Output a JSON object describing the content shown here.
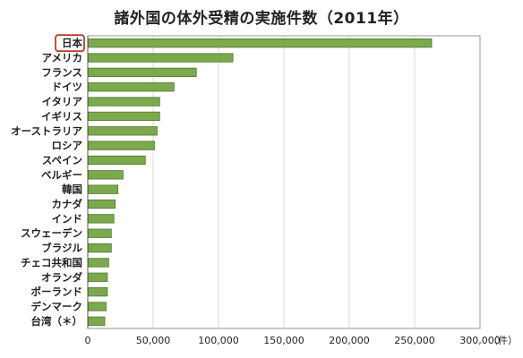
{
  "chart_data": {
    "type": "bar",
    "orientation": "horizontal",
    "title": "諸外国の体外受精の実施件数（2011年）",
    "xlabel": "",
    "ylabel": "",
    "x_unit": "（件）",
    "categories": [
      "日本",
      "アメリカ",
      "フランス",
      "ドイツ",
      "イタリア",
      "イギリス",
      "オーストラリア",
      "ロシア",
      "スペイン",
      "ベルギー",
      "韓国",
      "カナダ",
      "インド",
      "スウェーデン",
      "ブラジル",
      "チェコ共和国",
      "オランダ",
      "ポーランド",
      "デンマーク",
      "台湾（＊）"
    ],
    "values": [
      263000,
      111000,
      83000,
      66000,
      55000,
      55000,
      53000,
      51000,
      44000,
      27000,
      23000,
      21000,
      20000,
      18000,
      18000,
      16000,
      15000,
      15000,
      14000,
      13000
    ],
    "highlight_category": "日本",
    "xlim": [
      0,
      300000
    ],
    "xticks": [
      0,
      50000,
      100000,
      150000,
      200000,
      250000,
      300000
    ],
    "xtick_labels": [
      "0",
      "50,000",
      "100,000",
      "150,000",
      "200,000",
      "250,000",
      "300,000"
    ],
    "grid": true,
    "bar_color": "#7ca84e",
    "bar_edge_color": "#4e7a2a",
    "highlight_color": "#c0392b"
  }
}
